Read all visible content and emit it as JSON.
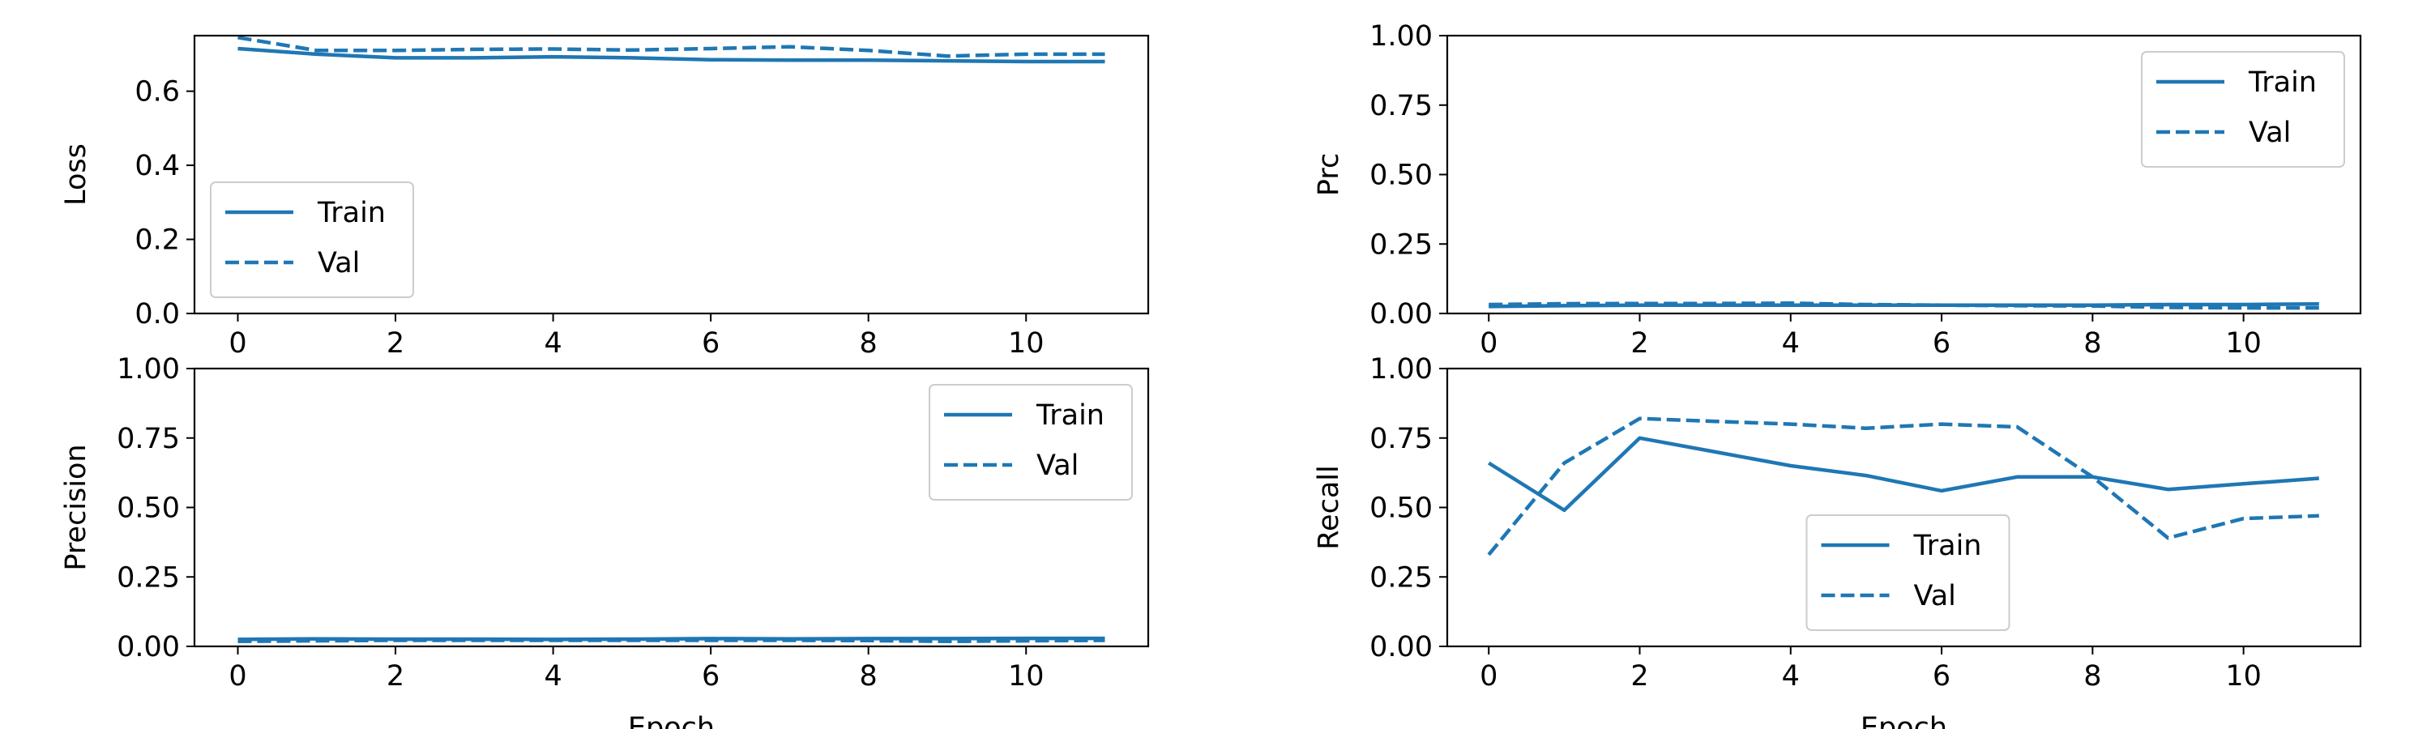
{
  "colors": {
    "series": "#1f77b4",
    "axes": "#000000",
    "legend_border": "#cccccc"
  },
  "chart_data": [
    {
      "type": "line",
      "ylabel": "Loss",
      "xlabel": "",
      "xlim": [
        -0.55,
        11.55
      ],
      "ylim": [
        0,
        0.75
      ],
      "xticks": [
        0,
        2,
        4,
        6,
        8,
        10
      ],
      "yticks": [
        0.0,
        0.2,
        0.4,
        0.6
      ],
      "ytick_labels": [
        "0.0",
        "0.2",
        "0.4",
        "0.6"
      ],
      "legend_loc": "lower-left",
      "x": [
        0,
        1,
        2,
        3,
        4,
        5,
        6,
        7,
        8,
        9,
        10,
        11
      ],
      "series": [
        {
          "name": "Train",
          "style": "solid",
          "values": [
            0.715,
            0.7,
            0.69,
            0.69,
            0.693,
            0.69,
            0.685,
            0.684,
            0.684,
            0.682,
            0.68,
            0.68
          ]
        },
        {
          "name": "Val",
          "style": "dashed",
          "values": [
            0.745,
            0.71,
            0.71,
            0.713,
            0.714,
            0.711,
            0.715,
            0.72,
            0.71,
            0.695,
            0.7,
            0.7
          ]
        }
      ]
    },
    {
      "type": "line",
      "ylabel": "Prc",
      "xlabel": "",
      "xlim": [
        -0.55,
        11.55
      ],
      "ylim": [
        0,
        1.0
      ],
      "xticks": [
        0,
        2,
        4,
        6,
        8,
        10
      ],
      "yticks": [
        0.0,
        0.25,
        0.5,
        0.75,
        1.0
      ],
      "ytick_labels": [
        "0.00",
        "0.25",
        "0.50",
        "0.75",
        "1.00"
      ],
      "legend_loc": "upper-right",
      "x": [
        0,
        1,
        2,
        3,
        4,
        5,
        6,
        7,
        8,
        9,
        10,
        11
      ],
      "series": [
        {
          "name": "Train",
          "style": "solid",
          "values": [
            0.025,
            0.028,
            0.03,
            0.03,
            0.03,
            0.03,
            0.03,
            0.03,
            0.03,
            0.032,
            0.032,
            0.034
          ]
        },
        {
          "name": "Val",
          "style": "dashed",
          "values": [
            0.032,
            0.035,
            0.036,
            0.036,
            0.037,
            0.032,
            0.03,
            0.028,
            0.027,
            0.022,
            0.02,
            0.02
          ]
        }
      ]
    },
    {
      "type": "line",
      "ylabel": "Precision",
      "xlabel": "Epoch",
      "xlim": [
        -0.55,
        11.55
      ],
      "ylim": [
        0,
        1.0
      ],
      "xticks": [
        0,
        2,
        4,
        6,
        8,
        10
      ],
      "yticks": [
        0.0,
        0.25,
        0.5,
        0.75,
        1.0
      ],
      "ytick_labels": [
        "0.00",
        "0.25",
        "0.50",
        "0.75",
        "1.00"
      ],
      "legend_loc": "upper-right",
      "x": [
        0,
        1,
        2,
        3,
        4,
        5,
        6,
        7,
        8,
        9,
        10,
        11
      ],
      "series": [
        {
          "name": "Train",
          "style": "solid",
          "values": [
            0.025,
            0.027,
            0.026,
            0.026,
            0.025,
            0.026,
            0.028,
            0.027,
            0.028,
            0.028,
            0.029,
            0.029
          ]
        },
        {
          "name": "Val",
          "style": "dashed",
          "values": [
            0.018,
            0.02,
            0.022,
            0.022,
            0.022,
            0.022,
            0.022,
            0.022,
            0.021,
            0.018,
            0.02,
            0.022
          ]
        }
      ]
    },
    {
      "type": "line",
      "ylabel": "Recall",
      "xlabel": "Epoch",
      "xlim": [
        -0.55,
        11.55
      ],
      "ylim": [
        0,
        1.0
      ],
      "xticks": [
        0,
        2,
        4,
        6,
        8,
        10
      ],
      "yticks": [
        0.0,
        0.25,
        0.5,
        0.75,
        1.0
      ],
      "ytick_labels": [
        "0.00",
        "0.25",
        "0.50",
        "0.75",
        "1.00"
      ],
      "legend_loc": "lower-center",
      "x": [
        0,
        1,
        2,
        3,
        4,
        5,
        6,
        7,
        8,
        9,
        10,
        11
      ],
      "series": [
        {
          "name": "Train",
          "style": "solid",
          "values": [
            0.66,
            0.49,
            0.75,
            0.7,
            0.65,
            0.615,
            0.56,
            0.61,
            0.61,
            0.565,
            0.585,
            0.605
          ]
        },
        {
          "name": "Val",
          "style": "dashed",
          "values": [
            0.33,
            0.66,
            0.82,
            0.81,
            0.8,
            0.785,
            0.8,
            0.79,
            0.61,
            0.39,
            0.46,
            0.47
          ]
        }
      ]
    }
  ]
}
